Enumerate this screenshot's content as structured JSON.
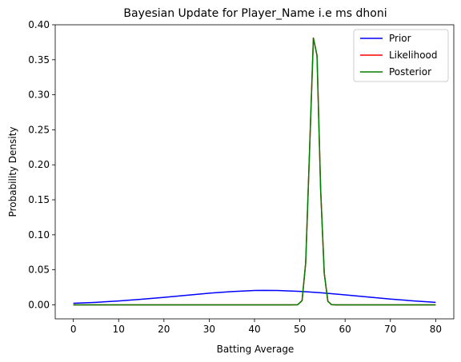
{
  "chart_data": {
    "type": "line",
    "title": "Bayesian Update for Player_Name i.e ms dhoni",
    "xlabel": "Batting Average",
    "ylabel": "Probability Density",
    "xlim": [
      -4,
      84
    ],
    "ylim": [
      -0.02,
      0.4
    ],
    "xticks": [
      0,
      10,
      20,
      30,
      40,
      50,
      60,
      70,
      80
    ],
    "xtick_labels": [
      "0",
      "10",
      "20",
      "30",
      "40",
      "50",
      "60",
      "70",
      "80"
    ],
    "yticks": [
      0.0,
      0.05,
      0.1,
      0.15,
      0.2,
      0.25,
      0.3,
      0.35,
      0.4
    ],
    "ytick_labels": [
      "0.00",
      "0.05",
      "0.10",
      "0.15",
      "0.20",
      "0.25",
      "0.30",
      "0.35",
      "0.40"
    ],
    "grid": false,
    "legend_position": "top-right",
    "series": [
      {
        "name": "Prior",
        "color": "#0000ff",
        "x": [
          0,
          5,
          10,
          15,
          20,
          25,
          30,
          35,
          40,
          42,
          45,
          50,
          55,
          60,
          65,
          70,
          75,
          80
        ],
        "y": [
          0.0022,
          0.0036,
          0.0055,
          0.0079,
          0.0107,
          0.0137,
          0.0166,
          0.019,
          0.0205,
          0.0207,
          0.0205,
          0.0193,
          0.0171,
          0.0143,
          0.0113,
          0.0083,
          0.0057,
          0.0036
        ]
      },
      {
        "name": "Likelihood",
        "color": "#ff0000",
        "x": [
          0,
          10,
          20,
          30,
          40,
          48,
          49.5,
          50.5,
          51.3,
          52.1,
          53.0,
          53.8,
          54.6,
          55.4,
          56.2,
          57.0,
          58,
          60,
          70,
          80
        ],
        "y": [
          0,
          0,
          0,
          0,
          0,
          0,
          0.0001,
          0.006,
          0.06,
          0.21,
          0.381,
          0.356,
          0.165,
          0.045,
          0.005,
          0.0003,
          0,
          0,
          0,
          0
        ]
      },
      {
        "name": "Posterior",
        "color": "#008000",
        "x": [
          0,
          10,
          20,
          30,
          40,
          48,
          49.5,
          50.5,
          51.3,
          52.1,
          53.0,
          53.8,
          54.6,
          55.4,
          56.2,
          57.0,
          58,
          60,
          70,
          80
        ],
        "y": [
          0,
          0,
          0,
          0,
          0,
          0,
          0.0001,
          0.006,
          0.06,
          0.21,
          0.381,
          0.356,
          0.165,
          0.045,
          0.005,
          0.0003,
          0,
          0,
          0,
          0
        ]
      }
    ]
  }
}
